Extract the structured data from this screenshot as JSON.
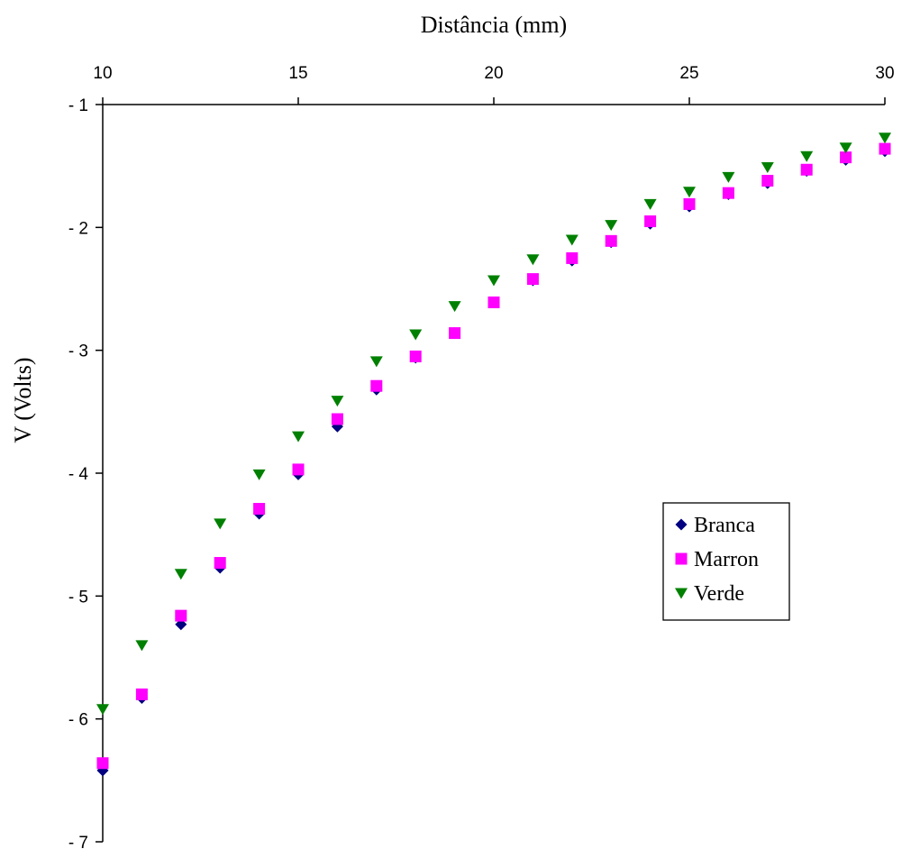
{
  "chart_data": {
    "type": "scatter",
    "xlabel": "Distância (mm)",
    "ylabel": "V (Volts)",
    "xlim": [
      10,
      30
    ],
    "ylim": [
      -7,
      -1
    ],
    "x_ticks": [
      10,
      15,
      20,
      25,
      30
    ],
    "y_ticks": [
      -1,
      -2,
      -3,
      -4,
      -5,
      -6,
      -7
    ],
    "x_tick_labels": [
      "10",
      "15",
      "20",
      "25",
      "30"
    ],
    "y_tick_labels": [
      "- 1",
      "- 2",
      "- 3",
      "- 4",
      "- 5",
      "- 6",
      "- 7"
    ],
    "x_axis_position": "top",
    "grid": false,
    "legend_position": "center-right",
    "x": [
      10,
      11,
      12,
      13,
      14,
      15,
      16,
      17,
      18,
      19,
      20,
      21,
      22,
      23,
      24,
      25,
      26,
      27,
      28,
      29,
      30
    ],
    "series": [
      {
        "name": "Branca",
        "marker": "diamond",
        "color": "#000080",
        "values": [
          -6.42,
          -5.83,
          -5.23,
          -4.77,
          -4.33,
          -4.01,
          -3.62,
          -3.32,
          -3.06,
          -2.86,
          -2.61,
          -2.43,
          -2.27,
          -2.12,
          -1.97,
          -1.83,
          -1.73,
          -1.64,
          -1.54,
          -1.45,
          -1.38
        ]
      },
      {
        "name": "Marron",
        "marker": "square",
        "color": "#ff00ff",
        "values": [
          -6.36,
          -5.8,
          -5.16,
          -4.73,
          -4.29,
          -3.97,
          -3.56,
          -3.29,
          -3.05,
          -2.86,
          -2.61,
          -2.42,
          -2.25,
          -2.11,
          -1.95,
          -1.81,
          -1.72,
          -1.62,
          -1.53,
          -1.43,
          -1.36
        ]
      },
      {
        "name": "Verde",
        "marker": "triangle-down",
        "color": "#008000",
        "values": [
          -5.92,
          -5.4,
          -4.82,
          -4.41,
          -4.01,
          -3.7,
          -3.41,
          -3.09,
          -2.87,
          -2.64,
          -2.43,
          -2.26,
          -2.1,
          -1.98,
          -1.81,
          -1.71,
          -1.59,
          -1.51,
          -1.42,
          -1.35,
          -1.27
        ]
      }
    ]
  }
}
